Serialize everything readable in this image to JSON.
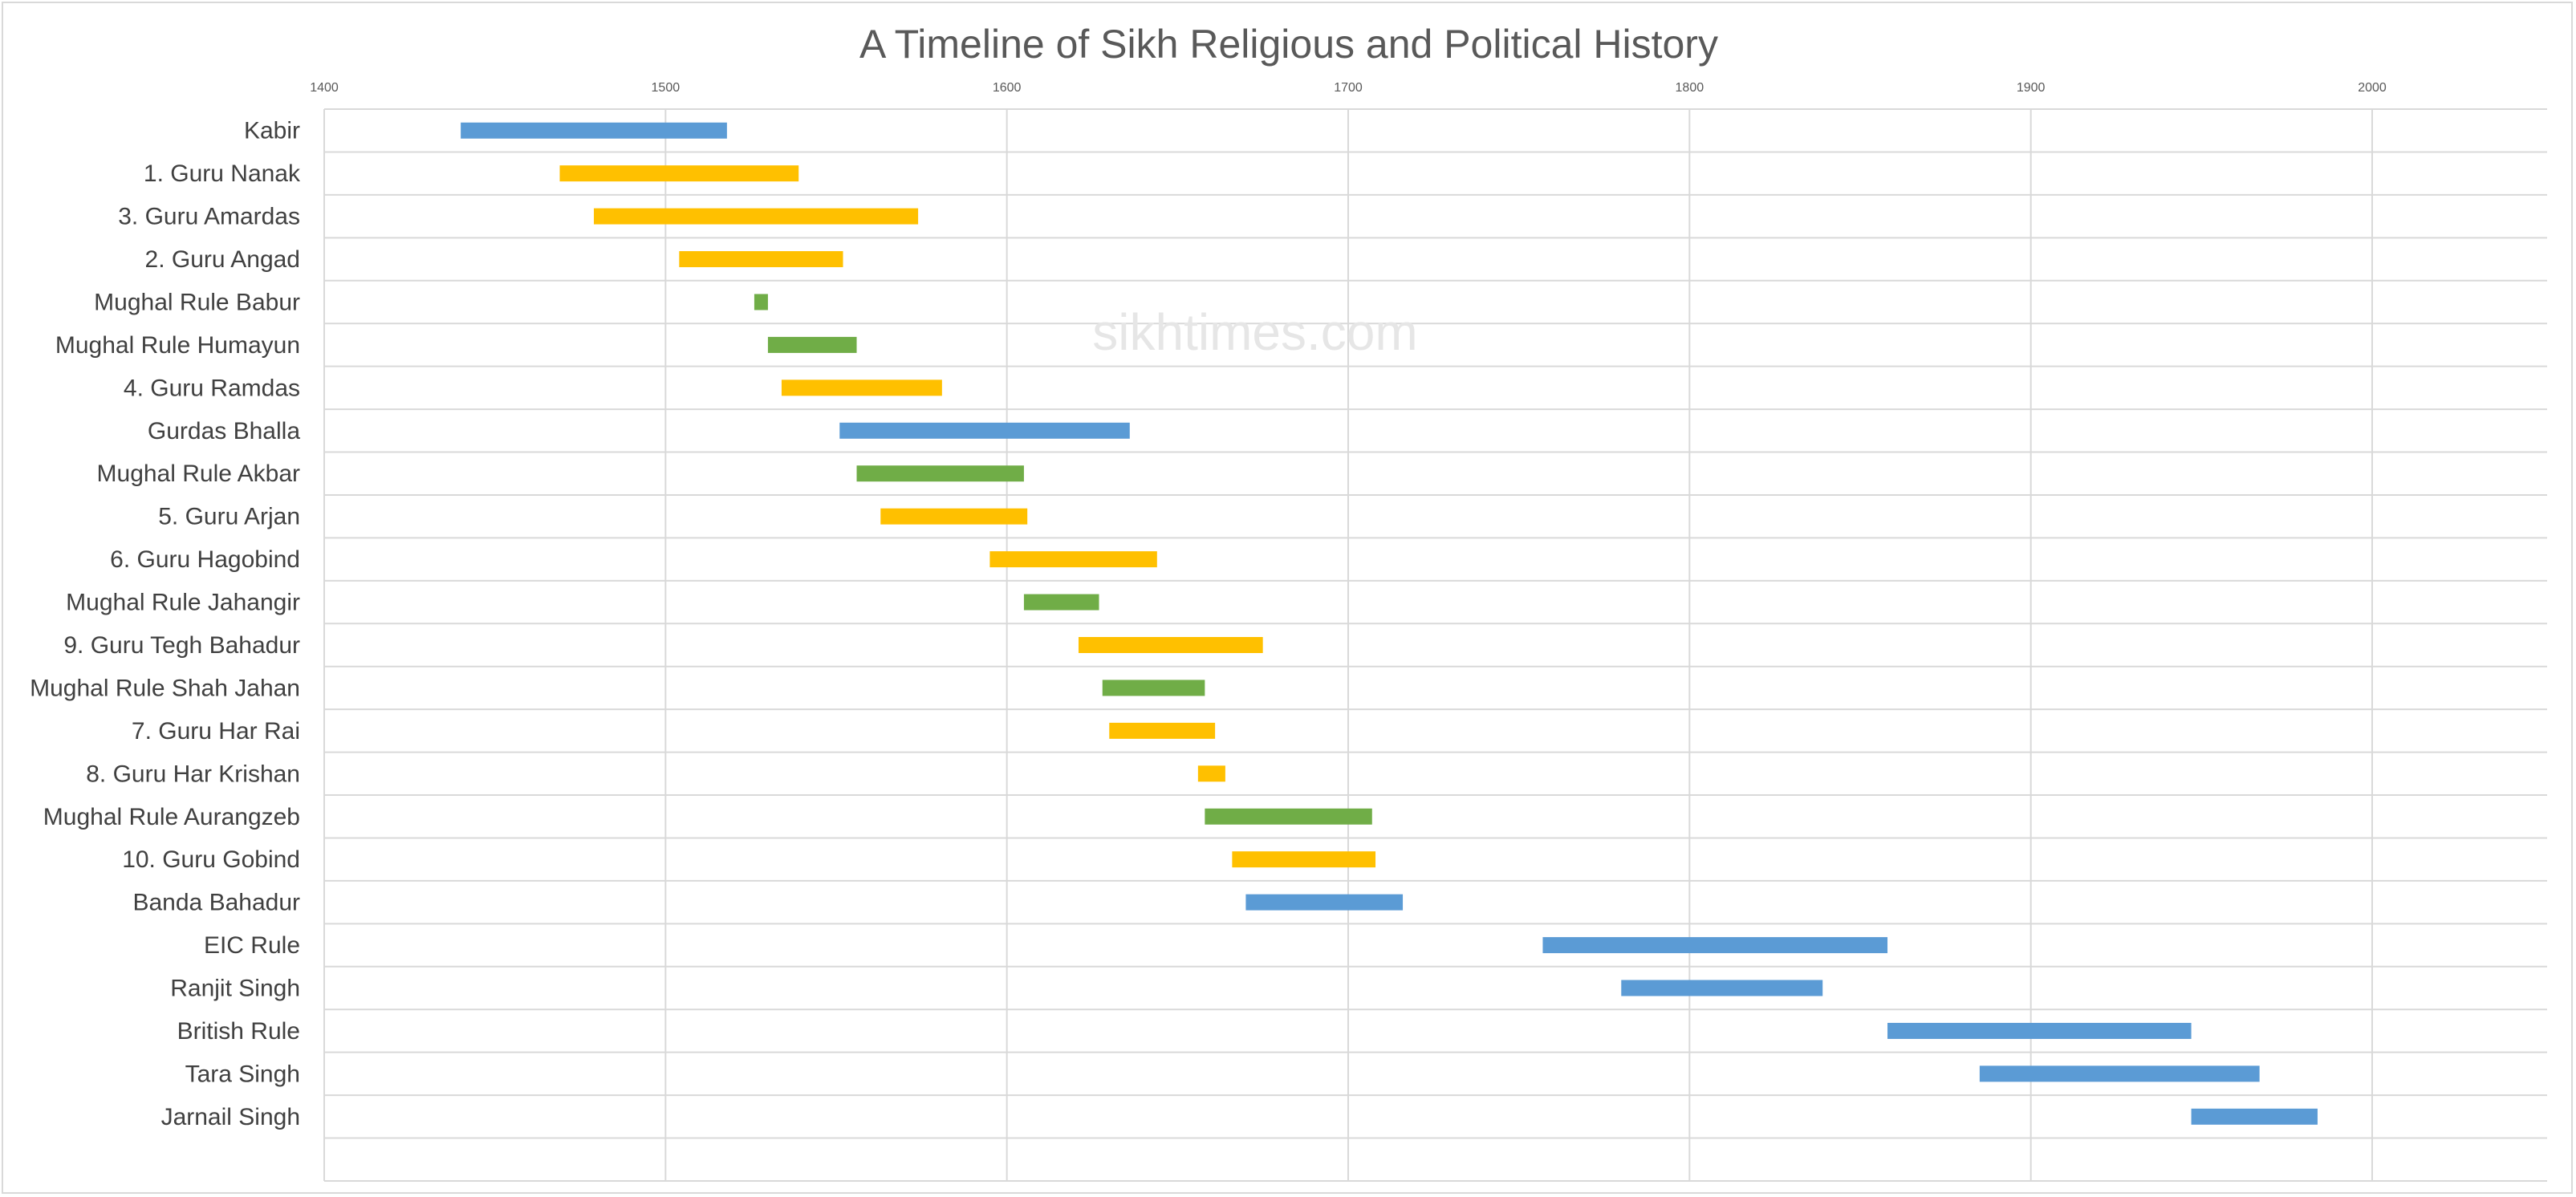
{
  "chart_data": {
    "type": "bar",
    "orientation": "horizontal-floating",
    "title": "A Timeline of Sikh Religious and Political History",
    "watermark": "sikhtimes.com",
    "xlim": [
      1400,
      2050
    ],
    "xticks": [
      1400,
      1500,
      1600,
      1700,
      1800,
      1900,
      2000
    ],
    "xaxis_position": "top",
    "grid": true,
    "legend": "none",
    "colors": {
      "blue": "#5b9bd5",
      "yellow": "#ffc000",
      "green": "#70ad47",
      "grid": "#d9d9d9"
    },
    "rows": [
      {
        "label": "Kabir",
        "start": 1440,
        "end": 1518,
        "color": "blue"
      },
      {
        "label": "1. Guru Nanak",
        "start": 1469,
        "end": 1539,
        "color": "yellow"
      },
      {
        "label": "3. Guru Amardas",
        "start": 1479,
        "end": 1574,
        "color": "yellow"
      },
      {
        "label": "2. Guru Angad",
        "start": 1504,
        "end": 1552,
        "color": "yellow"
      },
      {
        "label": "Mughal Rule Babur",
        "start": 1526,
        "end": 1530,
        "color": "green"
      },
      {
        "label": "Mughal Rule Humayun",
        "start": 1530,
        "end": 1556,
        "color": "green"
      },
      {
        "label": "4. Guru Ramdas",
        "start": 1534,
        "end": 1581,
        "color": "yellow"
      },
      {
        "label": "Gurdas Bhalla",
        "start": 1551,
        "end": 1636,
        "color": "blue"
      },
      {
        "label": "Mughal Rule Akbar",
        "start": 1556,
        "end": 1605,
        "color": "green"
      },
      {
        "label": "5. Guru Arjan",
        "start": 1563,
        "end": 1606,
        "color": "yellow"
      },
      {
        "label": "6. Guru Hagobind",
        "start": 1595,
        "end": 1644,
        "color": "yellow"
      },
      {
        "label": "Mughal Rule Jahangir",
        "start": 1605,
        "end": 1627,
        "color": "green"
      },
      {
        "label": "9. Guru Tegh Bahadur",
        "start": 1621,
        "end": 1675,
        "color": "yellow"
      },
      {
        "label": "Mughal Rule Shah Jahan",
        "start": 1628,
        "end": 1658,
        "color": "green"
      },
      {
        "label": "7. Guru Har Rai",
        "start": 1630,
        "end": 1661,
        "color": "yellow"
      },
      {
        "label": "8. Guru Har Krishan",
        "start": 1656,
        "end": 1664,
        "color": "yellow"
      },
      {
        "label": "Mughal Rule Aurangzeb",
        "start": 1658,
        "end": 1707,
        "color": "green"
      },
      {
        "label": "10. Guru Gobind",
        "start": 1666,
        "end": 1708,
        "color": "yellow"
      },
      {
        "label": "Banda Bahadur",
        "start": 1670,
        "end": 1716,
        "color": "blue"
      },
      {
        "label": "EIC Rule",
        "start": 1757,
        "end": 1858,
        "color": "blue"
      },
      {
        "label": "Ranjit Singh",
        "start": 1780,
        "end": 1839,
        "color": "blue"
      },
      {
        "label": "British Rule",
        "start": 1858,
        "end": 1947,
        "color": "blue"
      },
      {
        "label": "Tara Singh",
        "start": 1885,
        "end": 1967,
        "color": "blue"
      },
      {
        "label": "Jarnail Singh",
        "start": 1947,
        "end": 1984,
        "color": "blue"
      }
    ]
  }
}
